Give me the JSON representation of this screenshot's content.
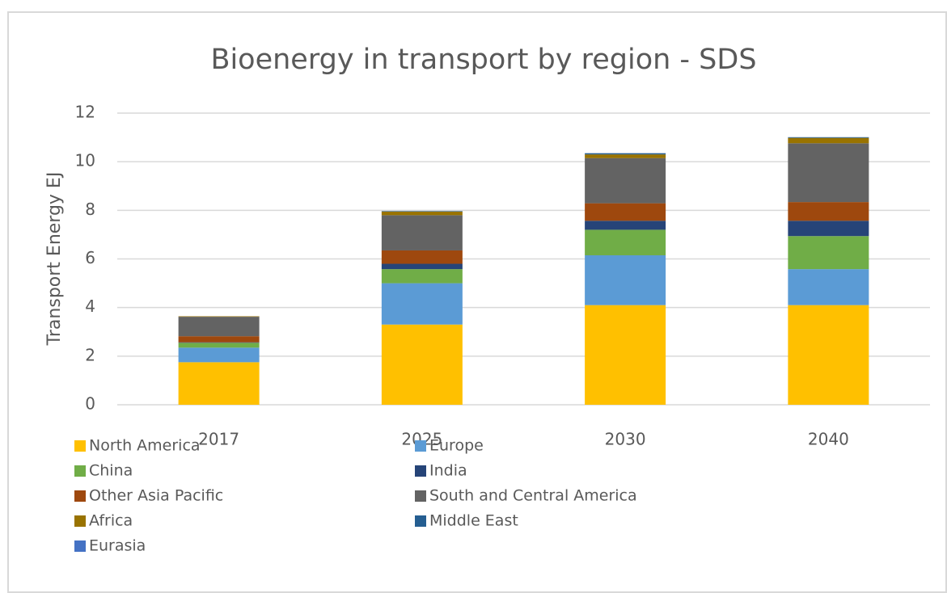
{
  "chart_data": {
    "type": "stacked_bar",
    "title": "Bioenergy in transport by region - SDS",
    "y_label": "Transport Energy EJ",
    "categories": [
      "2017",
      "2025",
      "2030",
      "2040"
    ],
    "series": [
      {
        "name": "North America",
        "color": "#ffc000",
        "values": [
          1.75,
          3.3,
          4.1,
          4.1
        ]
      },
      {
        "name": "Europe",
        "color": "#5b9bd5",
        "values": [
          0.6,
          1.7,
          2.05,
          1.48
        ]
      },
      {
        "name": "China",
        "color": "#70ad47",
        "values": [
          0.2,
          0.58,
          1.05,
          1.36
        ]
      },
      {
        "name": "India",
        "color": "#264478",
        "values": [
          0.02,
          0.22,
          0.37,
          0.63
        ]
      },
      {
        "name": "Other Asia Pacific",
        "color": "#9e480e",
        "values": [
          0.25,
          0.55,
          0.72,
          0.77
        ]
      },
      {
        "name": "South and Central America",
        "color": "#636363",
        "values": [
          0.8,
          1.45,
          1.86,
          2.42
        ]
      },
      {
        "name": "Africa",
        "color": "#997300",
        "values": [
          0.02,
          0.15,
          0.15,
          0.22
        ]
      },
      {
        "name": "Middle East",
        "color": "#255e91",
        "values": [
          0,
          0.02,
          0.05,
          0.03
        ]
      },
      {
        "name": "Eurasia",
        "color": "#4472c4",
        "values": [
          0,
          0,
          0,
          0
        ]
      }
    ],
    "ylim": [
      0,
      12
    ],
    "yticks": [
      0,
      2,
      4,
      6,
      8,
      10,
      12
    ],
    "grid": true,
    "legend": "bottom"
  }
}
